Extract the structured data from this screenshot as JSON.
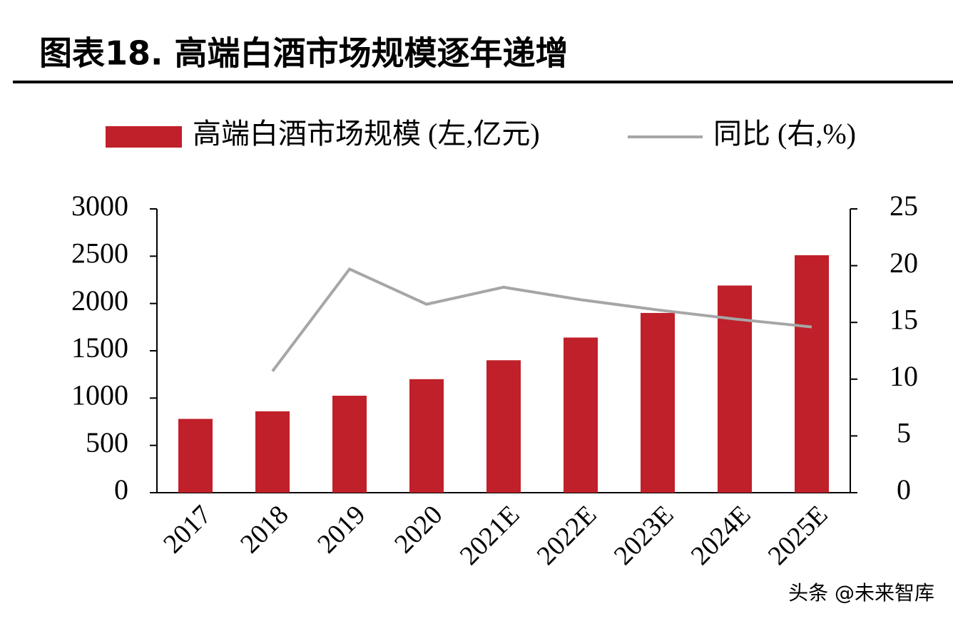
{
  "chart_data": {
    "type": "bar_line",
    "title": "图表18. 高端白酒市场规模逐年递增",
    "watermark": "头条 @未来智库",
    "categories": [
      "2017",
      "2018",
      "2019",
      "2020",
      "2021E",
      "2022E",
      "2023E",
      "2024E",
      "2025E"
    ],
    "series": [
      {
        "name": "高端白酒市场规模 (左,亿元)",
        "type": "bar",
        "color": "#c0202a",
        "values": [
          780,
          860,
          1025,
          1200,
          1400,
          1640,
          1900,
          2190,
          2510
        ]
      },
      {
        "name": "同比 (右,%)",
        "type": "line",
        "axis": "y2",
        "color": "#a6a6a6",
        "values": [
          null,
          10.7,
          19.7,
          16.6,
          18.1,
          17.0,
          16.1,
          15.3,
          14.6
        ]
      }
    ],
    "ylim": [
      0,
      3000
    ],
    "yticks": [
      0,
      500,
      1000,
      1500,
      2000,
      2500,
      3000
    ],
    "y2lim": [
      0,
      25
    ],
    "y2ticks": [
      0,
      5,
      10,
      15,
      20,
      25
    ]
  }
}
